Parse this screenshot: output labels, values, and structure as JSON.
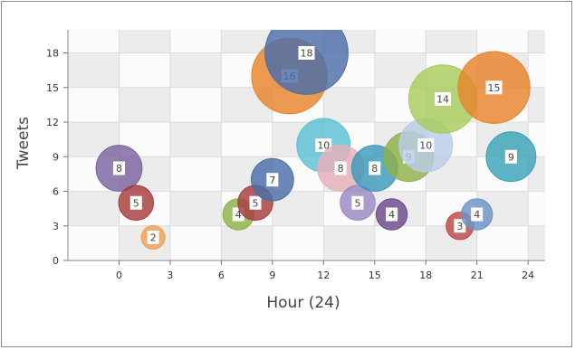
{
  "chart_data": {
    "type": "scatter",
    "variant": "bubble",
    "xlabel": "Hour (24)",
    "ylabel": "Tweets",
    "xlim": [
      -3,
      25
    ],
    "ylim": [
      0,
      20
    ],
    "x_ticks": [
      "0",
      "3",
      "6",
      "9",
      "12",
      "15",
      "18",
      "21",
      "24"
    ],
    "y_ticks": [
      "0",
      "3",
      "6",
      "9",
      "12",
      "15",
      "18"
    ],
    "grid": true,
    "points": [
      {
        "x": 0,
        "y": 8,
        "label": "8",
        "color": "#7b64a0"
      },
      {
        "x": 1,
        "y": 5,
        "label": "5",
        "color": "#a63c3c"
      },
      {
        "x": 2,
        "y": 2,
        "label": "2",
        "color": "#f0a05a"
      },
      {
        "x": 7,
        "y": 4,
        "label": "4",
        "color": "#8fb048"
      },
      {
        "x": 8,
        "y": 5,
        "label": "5",
        "color": "#a63c3c"
      },
      {
        "x": 9,
        "y": 7,
        "label": "7",
        "color": "#4a6ea8"
      },
      {
        "x": 10,
        "y": 16,
        "label": "16",
        "color": "#e8842c"
      },
      {
        "x": 11,
        "y": 18,
        "label": "18",
        "color": "#4a6ea8"
      },
      {
        "x": 12,
        "y": 10,
        "label": "10",
        "color": "#5bbfd6"
      },
      {
        "x": 13,
        "y": 8,
        "label": "8",
        "color": "#e8b0b8"
      },
      {
        "x": 14,
        "y": 5,
        "label": "5",
        "color": "#9a88c4"
      },
      {
        "x": 15,
        "y": 8,
        "label": "8",
        "color": "#3a9ab8"
      },
      {
        "x": 16,
        "y": 4,
        "label": "4",
        "color": "#6a4a8a"
      },
      {
        "x": 17,
        "y": 9,
        "label": "9",
        "color": "#8fb048"
      },
      {
        "x": 18,
        "y": 10,
        "label": "10",
        "color": "#b8cce8"
      },
      {
        "x": 19,
        "y": 14,
        "label": "14",
        "color": "#a8cc5c"
      },
      {
        "x": 20,
        "y": 3,
        "label": "3",
        "color": "#c04848"
      },
      {
        "x": 21,
        "y": 4,
        "label": "4",
        "color": "#6a94c8"
      },
      {
        "x": 22,
        "y": 15,
        "label": "15",
        "color": "#e8842c"
      },
      {
        "x": 23,
        "y": 9,
        "label": "9",
        "color": "#3aa4b8"
      }
    ]
  }
}
